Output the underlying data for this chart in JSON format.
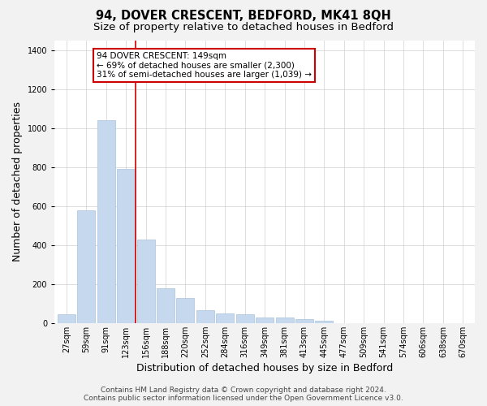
{
  "title": "94, DOVER CRESCENT, BEDFORD, MK41 8QH",
  "subtitle": "Size of property relative to detached houses in Bedford",
  "xlabel": "Distribution of detached houses by size in Bedford",
  "ylabel": "Number of detached properties",
  "categories": [
    "27sqm",
    "59sqm",
    "91sqm",
    "123sqm",
    "156sqm",
    "188sqm",
    "220sqm",
    "252sqm",
    "284sqm",
    "316sqm",
    "349sqm",
    "381sqm",
    "413sqm",
    "445sqm",
    "477sqm",
    "509sqm",
    "541sqm",
    "574sqm",
    "606sqm",
    "638sqm",
    "670sqm"
  ],
  "values": [
    45,
    578,
    1040,
    790,
    430,
    180,
    128,
    65,
    50,
    45,
    28,
    28,
    20,
    12,
    0,
    0,
    0,
    0,
    0,
    0,
    0
  ],
  "bar_color": "#c5d8ed",
  "bar_edge_color": "#aac4de",
  "annotation_text": "94 DOVER CRESCENT: 149sqm\n← 69% of detached houses are smaller (2,300)\n31% of semi-detached houses are larger (1,039) →",
  "annotation_box_facecolor": "#ffffff",
  "annotation_box_edgecolor": "#cc0000",
  "red_line_x": 3.5,
  "ylim": [
    0,
    1450
  ],
  "yticks": [
    0,
    200,
    400,
    600,
    800,
    1000,
    1200,
    1400
  ],
  "footer_line1": "Contains HM Land Registry data © Crown copyright and database right 2024.",
  "footer_line2": "Contains public sector information licensed under the Open Government Licence v3.0.",
  "bg_color": "#f2f2f2",
  "plot_bg_color": "#ffffff",
  "grid_color": "#d0d0d0",
  "red_line_color": "#cc0000",
  "title_fontsize": 10.5,
  "subtitle_fontsize": 9.5,
  "ylabel_fontsize": 9,
  "xlabel_fontsize": 9,
  "tick_fontsize": 7,
  "annotation_fontsize": 7.5,
  "footer_fontsize": 6.5
}
